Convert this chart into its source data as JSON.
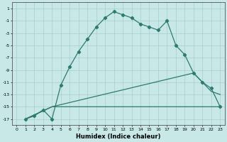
{
  "xlabel": "Humidex (Indice chaleur)",
  "bg_color": "#c8e8e8",
  "line_color": "#2d7a6e",
  "grid_color": "#a8cccc",
  "xlim": [
    -0.5,
    23.5
  ],
  "ylim": [
    -18,
    2
  ],
  "yticks": [
    1,
    -1,
    -3,
    -5,
    -7,
    -9,
    -11,
    -13,
    -15,
    -17
  ],
  "xticks": [
    0,
    1,
    2,
    3,
    4,
    5,
    6,
    7,
    8,
    9,
    10,
    11,
    12,
    13,
    14,
    15,
    16,
    17,
    18,
    19,
    20,
    21,
    22,
    23
  ],
  "line1_x": [
    1,
    2,
    3,
    4,
    5,
    6,
    7,
    8,
    9,
    10,
    11,
    12,
    13,
    14,
    15,
    16,
    17,
    18,
    19,
    20,
    21,
    22,
    23
  ],
  "line1_y": [
    -17,
    -16.5,
    -15.5,
    -17,
    -11.5,
    -8.5,
    -6,
    -4,
    -2,
    -0.5,
    0.5,
    0,
    -0.5,
    -1.5,
    -2,
    -2.5,
    -1,
    -5,
    -6.5,
    -9.5,
    -11,
    -12,
    -15
  ],
  "line2_x": [
    1,
    4,
    20,
    21,
    22,
    23
  ],
  "line2_y": [
    -17,
    -15,
    -9.5,
    -11,
    -12.5,
    -13
  ],
  "line3_x": [
    1,
    4,
    5,
    6,
    7,
    8,
    9,
    10,
    11,
    12,
    13,
    14,
    15,
    16,
    17,
    18,
    19,
    20,
    21,
    22,
    23
  ],
  "line3_y": [
    -17,
    -15,
    -15,
    -15,
    -15,
    -15,
    -15,
    -15,
    -15,
    -15,
    -15,
    -15,
    -15,
    -15,
    -15,
    -15,
    -15,
    -15,
    -15,
    -15,
    -15
  ]
}
